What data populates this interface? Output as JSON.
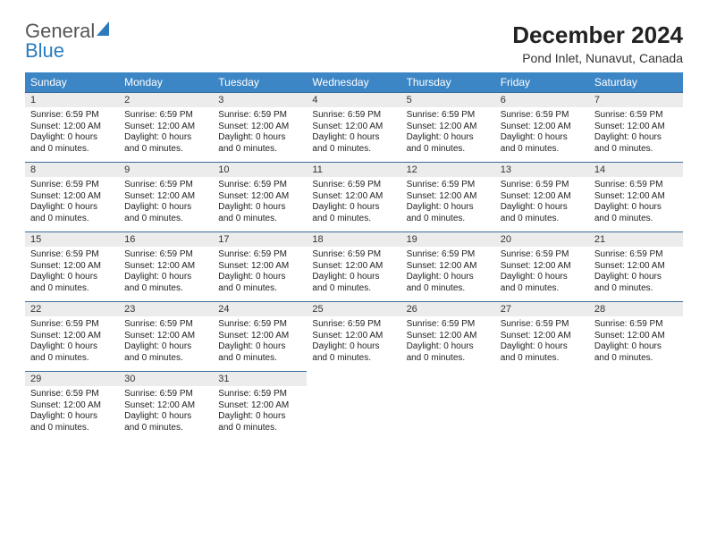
{
  "logo": {
    "part1": "General",
    "part2": "Blue"
  },
  "title": "December 2024",
  "location": "Pond Inlet, Nunavut, Canada",
  "colors": {
    "header_bg": "#3d86c6",
    "header_text": "#ffffff",
    "daynum_bg": "#ececec",
    "row_border": "#3d6b99",
    "logo_blue": "#2b7bbc"
  },
  "weekdays": [
    "Sunday",
    "Monday",
    "Tuesday",
    "Wednesday",
    "Thursday",
    "Friday",
    "Saturday"
  ],
  "day_info": {
    "sunrise_label": "Sunrise:",
    "sunset_label": "Sunset:",
    "daylight_label": "Daylight:",
    "sunrise": "6:59 PM",
    "sunset": "12:00 AM",
    "daylight": "0 hours and 0 minutes."
  },
  "weeks": [
    {
      "days": [
        {
          "n": "1"
        },
        {
          "n": "2"
        },
        {
          "n": "3"
        },
        {
          "n": "4"
        },
        {
          "n": "5"
        },
        {
          "n": "6"
        },
        {
          "n": "7"
        }
      ]
    },
    {
      "days": [
        {
          "n": "8"
        },
        {
          "n": "9"
        },
        {
          "n": "10"
        },
        {
          "n": "11"
        },
        {
          "n": "12"
        },
        {
          "n": "13"
        },
        {
          "n": "14"
        }
      ]
    },
    {
      "days": [
        {
          "n": "15"
        },
        {
          "n": "16"
        },
        {
          "n": "17"
        },
        {
          "n": "18"
        },
        {
          "n": "19"
        },
        {
          "n": "20"
        },
        {
          "n": "21"
        }
      ]
    },
    {
      "days": [
        {
          "n": "22"
        },
        {
          "n": "23"
        },
        {
          "n": "24"
        },
        {
          "n": "25"
        },
        {
          "n": "26"
        },
        {
          "n": "27"
        },
        {
          "n": "28"
        }
      ]
    },
    {
      "days": [
        {
          "n": "29"
        },
        {
          "n": "30"
        },
        {
          "n": "31"
        },
        null,
        null,
        null,
        null
      ]
    }
  ]
}
